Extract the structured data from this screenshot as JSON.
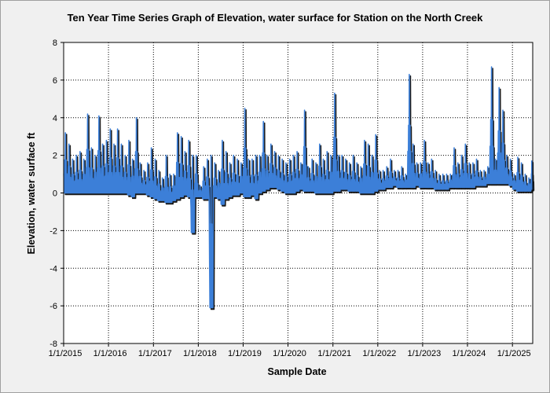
{
  "chart_data": {
    "type": "line",
    "title": "Ten Year Time Series Graph of Elevation, water surface for Station  on the North Creek",
    "xlabel": "Sample Date",
    "ylabel": "Elevation, water surface ft",
    "ylim": [
      -8,
      8
    ],
    "yticks": [
      -8,
      -6,
      -4,
      -2,
      0,
      2,
      4,
      6,
      8
    ],
    "xlim": [
      "2015-01-01",
      "2025-06-15"
    ],
    "xticks": [
      "1/1/2015",
      "1/1/2016",
      "1/1/2017",
      "1/1/2018",
      "1/1/2019",
      "1/1/2020",
      "1/1/2021",
      "1/1/2022",
      "1/1/2023",
      "1/1/2024",
      "1/1/2025"
    ],
    "grid": true,
    "legend": "none",
    "colors": {
      "series": "#3c7fd8",
      "shadow": "#1a1a1a",
      "plot_bg": "#ffffff",
      "frame": "#000000",
      "grid": "#000000"
    },
    "series": [
      {
        "x": [
          "2015-01-01",
          "2015-02-01",
          "2015-03-01",
          "2015-04-01",
          "2015-05-01",
          "2015-06-01",
          "2015-07-01",
          "2015-08-01",
          "2015-09-01",
          "2015-10-01",
          "2015-11-01",
          "2015-12-01",
          "2016-01-01",
          "2016-02-01",
          "2016-03-01",
          "2016-04-01",
          "2016-05-01",
          "2016-06-01",
          "2016-07-01",
          "2016-08-01",
          "2016-09-01",
          "2016-10-01",
          "2016-11-01",
          "2016-12-01",
          "2017-01-01",
          "2017-02-01",
          "2017-03-01",
          "2017-04-01",
          "2017-05-01",
          "2017-06-01",
          "2017-07-01",
          "2017-08-01",
          "2017-09-01",
          "2017-10-01",
          "2017-11-01",
          "2017-12-01",
          "2018-01-01",
          "2018-02-01",
          "2018-03-01",
          "2018-04-01",
          "2018-05-01",
          "2018-06-01",
          "2018-07-01",
          "2018-08-01",
          "2018-09-01",
          "2018-10-01",
          "2018-11-01",
          "2018-12-01",
          "2019-01-01",
          "2019-02-01",
          "2019-03-01",
          "2019-04-01",
          "2019-05-01",
          "2019-06-01",
          "2019-07-01",
          "2019-08-01",
          "2019-09-01",
          "2019-10-01",
          "2019-11-01",
          "2019-12-01",
          "2020-01-01",
          "2020-02-01",
          "2020-03-01",
          "2020-04-01",
          "2020-05-01",
          "2020-06-01",
          "2020-07-01",
          "2020-08-01",
          "2020-09-01",
          "2020-10-01",
          "2020-11-01",
          "2020-12-01",
          "2021-01-01",
          "2021-02-01",
          "2021-03-01",
          "2021-04-01",
          "2021-05-01",
          "2021-06-01",
          "2021-07-01",
          "2021-08-01",
          "2021-09-01",
          "2021-10-01",
          "2021-11-01",
          "2021-12-01",
          "2022-01-01",
          "2022-02-01",
          "2022-03-01",
          "2022-04-01",
          "2022-05-01",
          "2022-06-01",
          "2022-07-01",
          "2022-08-01",
          "2022-09-01",
          "2022-10-01",
          "2022-11-01",
          "2022-12-01",
          "2023-01-01",
          "2023-02-01",
          "2023-03-01",
          "2023-04-01",
          "2023-05-01",
          "2023-06-01",
          "2023-07-01",
          "2023-08-01",
          "2023-09-01",
          "2023-10-01",
          "2023-11-01",
          "2023-12-01",
          "2024-01-01",
          "2024-02-01",
          "2024-03-01",
          "2024-04-01",
          "2024-05-01",
          "2024-06-01",
          "2024-07-01",
          "2024-08-01",
          "2024-09-01",
          "2024-10-01",
          "2024-11-01",
          "2024-12-01",
          "2025-01-01",
          "2025-02-01",
          "2025-03-01",
          "2025-04-01",
          "2025-05-01",
          "2025-06-01"
        ],
        "min": [
          0.0,
          0.0,
          0.0,
          0.0,
          0.0,
          0.0,
          0.0,
          0.0,
          0.0,
          0.0,
          0.0,
          0.0,
          0.0,
          0.0,
          0.0,
          0.0,
          0.0,
          -0.1,
          -0.2,
          0.0,
          0.0,
          0.0,
          -0.1,
          -0.2,
          -0.3,
          -0.4,
          -0.4,
          -0.5,
          -0.5,
          -0.4,
          -0.3,
          -0.2,
          -0.1,
          -0.2,
          -2.1,
          -0.2,
          -0.2,
          -0.3,
          -0.3,
          -6.1,
          -0.2,
          -0.3,
          -0.6,
          -0.3,
          -0.2,
          -0.1,
          -0.1,
          0.0,
          -0.2,
          -0.2,
          -0.1,
          -0.3,
          0.0,
          0.1,
          0.2,
          0.3,
          0.3,
          0.2,
          0.1,
          0.0,
          0.0,
          0.0,
          0.1,
          0.2,
          0.1,
          0.1,
          0.1,
          0.0,
          0.0,
          0.0,
          0.0,
          0.0,
          0.1,
          0.1,
          0.2,
          0.2,
          0.1,
          0.1,
          0.1,
          0.0,
          0.0,
          0.0,
          0.0,
          0.1,
          0.2,
          0.2,
          0.3,
          0.3,
          0.4,
          0.3,
          0.3,
          0.3,
          0.3,
          0.3,
          0.4,
          0.3,
          0.3,
          0.3,
          0.3,
          0.2,
          0.2,
          0.2,
          0.2,
          0.3,
          0.3,
          0.3,
          0.3,
          0.3,
          0.3,
          0.3,
          0.4,
          0.4,
          0.4,
          0.5,
          0.5,
          0.5,
          0.5,
          0.5,
          0.5,
          0.4,
          0.2,
          0.1,
          0.1,
          0.1,
          0.1,
          0.2
        ],
        "max": [
          3.2,
          2.6,
          1.8,
          2.0,
          2.2,
          1.8,
          4.2,
          2.4,
          2.0,
          4.1,
          2.6,
          2.8,
          3.4,
          2.6,
          3.4,
          2.6,
          2.0,
          2.8,
          1.8,
          4.0,
          1.6,
          1.2,
          1.6,
          2.4,
          1.8,
          1.2,
          0.8,
          2.0,
          1.0,
          1.0,
          3.2,
          3.0,
          2.2,
          2.8,
          2.0,
          2.0,
          0.4,
          1.4,
          1.8,
          2.0,
          1.6,
          1.2,
          2.8,
          2.2,
          1.6,
          2.0,
          1.8,
          1.6,
          4.5,
          1.8,
          1.8,
          2.0,
          2.0,
          3.8,
          2.0,
          2.6,
          2.2,
          2.0,
          1.8,
          1.6,
          1.8,
          2.0,
          2.2,
          1.6,
          4.4,
          1.4,
          1.8,
          1.6,
          2.6,
          1.8,
          2.2,
          2.0,
          5.3,
          2.0,
          2.0,
          1.8,
          1.6,
          2.0,
          1.6,
          1.4,
          2.8,
          2.6,
          2.0,
          3.1,
          1.2,
          1.2,
          1.4,
          1.8,
          1.2,
          1.2,
          1.4,
          1.0,
          6.3,
          2.6,
          1.6,
          1.6,
          2.8,
          1.6,
          1.8,
          1.2,
          1.0,
          1.0,
          1.0,
          1.0,
          2.4,
          1.6,
          2.0,
          2.6,
          1.6,
          1.6,
          1.8,
          1.2,
          1.2,
          1.4,
          6.7,
          1.8,
          5.6,
          4.4,
          2.0,
          1.8,
          1.0,
          1.9,
          1.6,
          1.0,
          0.8,
          1.7
        ]
      }
    ]
  }
}
